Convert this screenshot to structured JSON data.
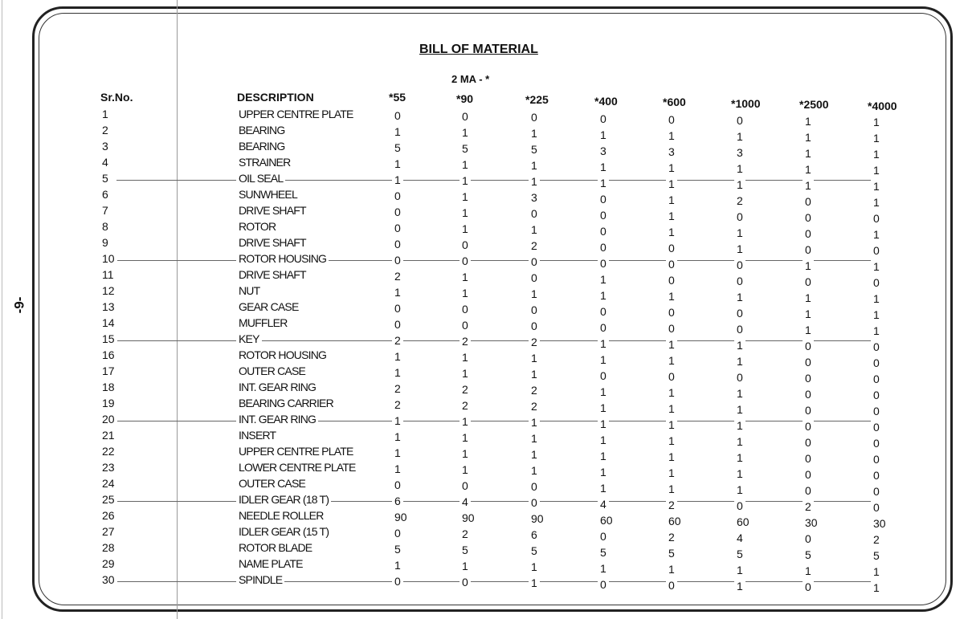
{
  "page_number": "-9-",
  "title": "BILL OF MATERIAL",
  "subtitle": "2 MA - *",
  "headers": {
    "sr": "Sr.No.",
    "description": "DESCRIPTION",
    "models": [
      "*55",
      "*90",
      "*225",
      "*400",
      "*600",
      "*1000",
      "*2500",
      "*4000"
    ]
  },
  "rows": [
    {
      "sr": "1",
      "description": "UPPER CENTRE PLATE",
      "q": [
        "0",
        "0",
        "0",
        "0",
        "0",
        "0",
        "1",
        "1"
      ]
    },
    {
      "sr": "2",
      "description": "BEARING",
      "q": [
        "1",
        "1",
        "1",
        "1",
        "1",
        "1",
        "1",
        "1"
      ]
    },
    {
      "sr": "3",
      "description": "BEARING",
      "q": [
        "5",
        "5",
        "5",
        "3",
        "3",
        "3",
        "1",
        "1"
      ]
    },
    {
      "sr": "4",
      "description": "STRAINER",
      "q": [
        "1",
        "1",
        "1",
        "1",
        "1",
        "1",
        "1",
        "1"
      ]
    },
    {
      "sr": "5",
      "description": "OIL SEAL",
      "q": [
        "1",
        "1",
        "1",
        "1",
        "1",
        "1",
        "1",
        "1"
      ]
    },
    {
      "sr": "6",
      "description": "SUNWHEEL",
      "q": [
        "0",
        "1",
        "3",
        "0",
        "1",
        "2",
        "0",
        "1"
      ]
    },
    {
      "sr": "7",
      "description": "DRIVE SHAFT",
      "q": [
        "0",
        "1",
        "0",
        "0",
        "1",
        "0",
        "0",
        "0"
      ]
    },
    {
      "sr": "8",
      "description": "ROTOR",
      "q": [
        "0",
        "1",
        "1",
        "0",
        "1",
        "1",
        "0",
        "1"
      ]
    },
    {
      "sr": "9",
      "description": "DRIVE SHAFT",
      "q": [
        "0",
        "0",
        "2",
        "0",
        "0",
        "1",
        "0",
        "0"
      ]
    },
    {
      "sr": "10",
      "description": "ROTOR HOUSING",
      "q": [
        "0",
        "0",
        "0",
        "0",
        "0",
        "0",
        "1",
        "1"
      ]
    },
    {
      "sr": "11",
      "description": "DRIVE SHAFT",
      "q": [
        "2",
        "1",
        "0",
        "1",
        "0",
        "0",
        "0",
        "0"
      ]
    },
    {
      "sr": "12",
      "description": "NUT",
      "q": [
        "1",
        "1",
        "1",
        "1",
        "1",
        "1",
        "1",
        "1"
      ]
    },
    {
      "sr": "13",
      "description": "GEAR CASE",
      "q": [
        "0",
        "0",
        "0",
        "0",
        "0",
        "0",
        "1",
        "1"
      ]
    },
    {
      "sr": "14",
      "description": "MUFFLER",
      "q": [
        "0",
        "0",
        "0",
        "0",
        "0",
        "0",
        "1",
        "1"
      ]
    },
    {
      "sr": "15",
      "description": "KEY",
      "q": [
        "2",
        "2",
        "2",
        "1",
        "1",
        "1",
        "0",
        "0"
      ]
    },
    {
      "sr": "16",
      "description": "ROTOR HOUSING",
      "q": [
        "1",
        "1",
        "1",
        "1",
        "1",
        "1",
        "0",
        "0"
      ]
    },
    {
      "sr": "17",
      "description": "OUTER CASE",
      "q": [
        "1",
        "1",
        "1",
        "0",
        "0",
        "0",
        "0",
        "0"
      ]
    },
    {
      "sr": "18",
      "description": "INT. GEAR RING",
      "q": [
        "2",
        "2",
        "2",
        "1",
        "1",
        "1",
        "0",
        "0"
      ]
    },
    {
      "sr": "19",
      "description": "BEARING CARRIER",
      "q": [
        "2",
        "2",
        "2",
        "1",
        "1",
        "1",
        "0",
        "0"
      ]
    },
    {
      "sr": "20",
      "description": "INT. GEAR RING",
      "q": [
        "1",
        "1",
        "1",
        "1",
        "1",
        "1",
        "0",
        "0"
      ]
    },
    {
      "sr": "21",
      "description": "INSERT",
      "q": [
        "1",
        "1",
        "1",
        "1",
        "1",
        "1",
        "0",
        "0"
      ]
    },
    {
      "sr": "22",
      "description": "UPPER CENTRE PLATE",
      "q": [
        "1",
        "1",
        "1",
        "1",
        "1",
        "1",
        "0",
        "0"
      ]
    },
    {
      "sr": "23",
      "description": "LOWER CENTRE PLATE",
      "q": [
        "1",
        "1",
        "1",
        "1",
        "1",
        "1",
        "0",
        "0"
      ]
    },
    {
      "sr": "24",
      "description": "OUTER CASE",
      "q": [
        "0",
        "0",
        "0",
        "1",
        "1",
        "1",
        "0",
        "0"
      ]
    },
    {
      "sr": "25",
      "description": "IDLER GEAR (18 T)",
      "q": [
        "6",
        "4",
        "0",
        "4",
        "2",
        "0",
        "2",
        "0"
      ]
    },
    {
      "sr": "26",
      "description": "NEEDLE ROLLER",
      "q": [
        "90",
        "90",
        "90",
        "60",
        "60",
        "60",
        "30",
        "30"
      ]
    },
    {
      "sr": "27",
      "description": "IDLER GEAR (15 T)",
      "q": [
        "0",
        "2",
        "6",
        "0",
        "2",
        "4",
        "0",
        "2"
      ]
    },
    {
      "sr": "28",
      "description": "ROTOR BLADE",
      "q": [
        "5",
        "5",
        "5",
        "5",
        "5",
        "5",
        "5",
        "5"
      ]
    },
    {
      "sr": "29",
      "description": "NAME PLATE",
      "q": [
        "1",
        "1",
        "1",
        "1",
        "1",
        "1",
        "1",
        "1"
      ]
    },
    {
      "sr": "30",
      "description": "SPINDLE",
      "q": [
        "0",
        "0",
        "1",
        "0",
        "0",
        "1",
        "0",
        "1"
      ]
    }
  ]
}
